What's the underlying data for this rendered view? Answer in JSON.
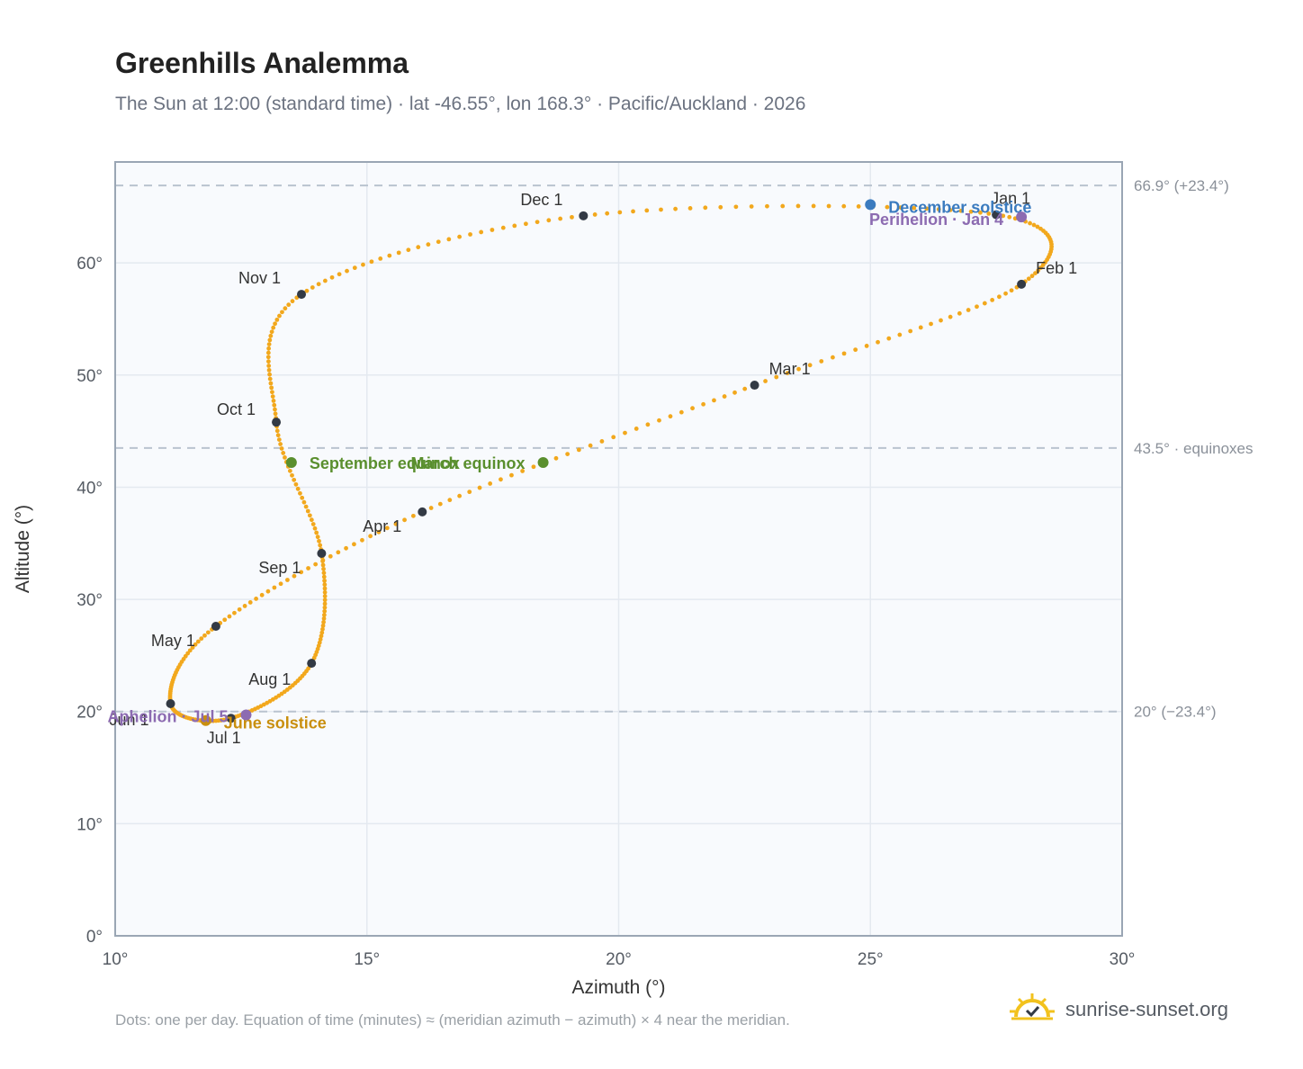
{
  "header": {
    "title": "Greenhills Analemma",
    "subtitle": "The Sun at 12:00 (standard time) · lat -46.55°, lon 168.3° · Pacific/Auckland · 2026"
  },
  "footer": {
    "note": "Dots: one per day. Equation of time (minutes) ≈ (meridian azimuth − azimuth) × 4 near the meridian.",
    "brand": "sunrise-sunset.org",
    "brand_icon": "sun-logo-icon"
  },
  "colors": {
    "curve": "#f2a81d",
    "month_dot": "#333a45",
    "equinox": "#5a8f2e",
    "december_solstice": "#3b7bbf",
    "june_solstice": "#c98f0e",
    "apsis": "#8c6bb1",
    "ref_line": "#b9c3cf",
    "plot_bg": "#f8fafd",
    "grid": "#e4e9f0",
    "frame": "#9aa6b4"
  },
  "chart_data": {
    "type": "scatter",
    "xlabel": "Azimuth (°)",
    "ylabel": "Altitude (°)",
    "xlim": [
      10,
      30
    ],
    "ylim": [
      0,
      69
    ],
    "x_ticks": [
      10,
      15,
      20,
      25,
      30
    ],
    "x_tick_labels": [
      "10°",
      "15°",
      "20°",
      "25°",
      "30°"
    ],
    "y_ticks": [
      0,
      10,
      20,
      30,
      40,
      50,
      60
    ],
    "y_tick_labels": [
      "0°",
      "10°",
      "20°",
      "30°",
      "40°",
      "50°",
      "60°"
    ],
    "grid": true,
    "reference_lines": [
      {
        "y": 66.9,
        "label": "66.9° (+23.4°)"
      },
      {
        "y": 43.5,
        "label": "43.5° · equinoxes"
      },
      {
        "y": 20,
        "label": "20° (−23.4°)"
      }
    ],
    "daily_series": {
      "points": "one per day",
      "anchors": [
        {
          "date": "Jan 1",
          "azimuth": 27.5,
          "altitude": 64.3
        },
        {
          "date": "Feb 1",
          "azimuth": 28.0,
          "altitude": 58.1
        },
        {
          "date": "Mar 1",
          "azimuth": 22.7,
          "altitude": 49.1
        },
        {
          "date": "Apr 1",
          "azimuth": 16.1,
          "altitude": 37.8
        },
        {
          "date": "May 1",
          "azimuth": 12.0,
          "altitude": 27.6
        },
        {
          "date": "Jun 1",
          "azimuth": 11.1,
          "altitude": 20.7
        },
        {
          "date": "Jul 1",
          "azimuth": 12.3,
          "altitude": 19.4
        },
        {
          "date": "Aug 1",
          "azimuth": 13.9,
          "altitude": 24.3
        },
        {
          "date": "Sep 1",
          "azimuth": 14.1,
          "altitude": 34.1
        },
        {
          "date": "Oct 1",
          "azimuth": 13.2,
          "altitude": 45.8
        },
        {
          "date": "Nov 1",
          "azimuth": 13.7,
          "altitude": 57.2
        },
        {
          "date": "Dec 1",
          "azimuth": 19.3,
          "altitude": 64.2
        }
      ]
    },
    "month_markers": [
      {
        "label": "Jan 1",
        "azimuth": 27.5,
        "altitude": 64.3
      },
      {
        "label": "Feb 1",
        "azimuth": 28.0,
        "altitude": 58.1
      },
      {
        "label": "Mar 1",
        "azimuth": 22.7,
        "altitude": 49.1
      },
      {
        "label": "Apr 1",
        "azimuth": 16.1,
        "altitude": 37.8
      },
      {
        "label": "May 1",
        "azimuth": 12.0,
        "altitude": 27.6
      },
      {
        "label": "Jun 1",
        "azimuth": 11.1,
        "altitude": 20.7
      },
      {
        "label": "Jul 1",
        "azimuth": 12.3,
        "altitude": 19.4
      },
      {
        "label": "Aug 1",
        "azimuth": 13.9,
        "altitude": 24.3
      },
      {
        "label": "Sep 1",
        "azimuth": 14.1,
        "altitude": 34.1
      },
      {
        "label": "Oct 1",
        "azimuth": 13.2,
        "altitude": 45.8
      },
      {
        "label": "Nov 1",
        "azimuth": 13.7,
        "altitude": 57.2
      },
      {
        "label": "Dec 1",
        "azimuth": 19.3,
        "altitude": 64.2
      }
    ],
    "events": [
      {
        "label": "December solstice",
        "azimuth": 25.0,
        "altitude": 65.2,
        "color_key": "december_solstice"
      },
      {
        "label": "Perihelion · Jan 4",
        "azimuth": 28.0,
        "altitude": 64.1,
        "color_key": "apsis"
      },
      {
        "label": "March equinox",
        "azimuth": 18.5,
        "altitude": 42.2,
        "color_key": "equinox"
      },
      {
        "label": "September equinox",
        "azimuth": 13.5,
        "altitude": 42.2,
        "color_key": "equinox"
      },
      {
        "label": "June solstice",
        "azimuth": 11.8,
        "altitude": 19.2,
        "color_key": "june_solstice"
      },
      {
        "label": "Aphelion · Jul 5",
        "azimuth": 12.6,
        "altitude": 19.7,
        "color_key": "apsis"
      }
    ]
  }
}
